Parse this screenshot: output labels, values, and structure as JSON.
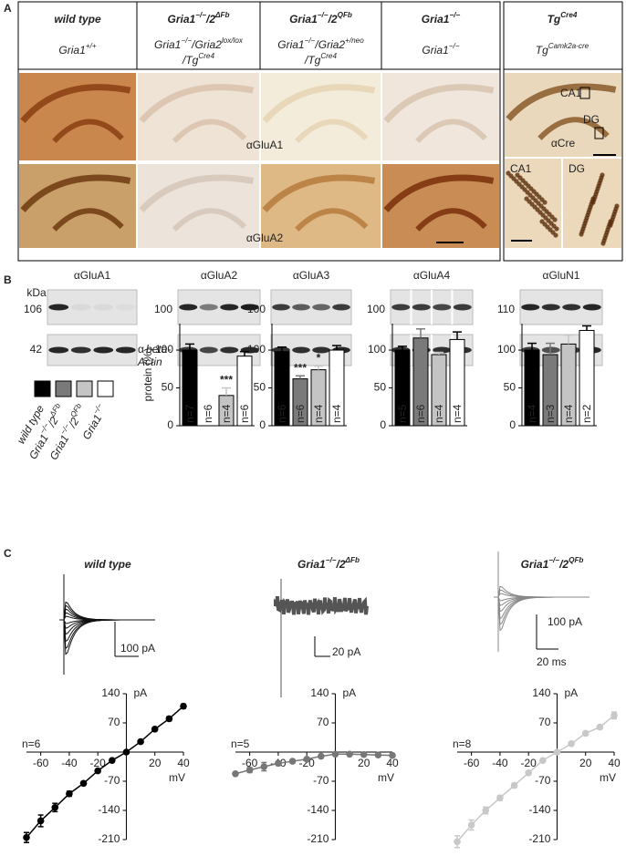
{
  "panels": {
    "A": {
      "label": "A",
      "genotypes": [
        {
          "title": [
            {
              "t": "wild type"
            }
          ],
          "subtitle": [
            [
              {
                "t": "Gria1"
              },
              {
                "t": "+/+",
                "sup": true
              }
            ]
          ]
        },
        {
          "title": [
            {
              "t": "Gria1"
            },
            {
              "t": "−/−",
              "sup": true
            },
            {
              "t": "/2"
            },
            {
              "t": "ΔFb",
              "sup": true
            }
          ],
          "subtitle": [
            [
              {
                "t": "Gria1"
              },
              {
                "t": "−/−",
                "sup": true
              },
              {
                "t": "/Gria2"
              },
              {
                "t": "lox/lox",
                "sup": true
              }
            ],
            [
              {
                "t": "/Tg"
              },
              {
                "t": "Cre4",
                "sup": true
              }
            ]
          ]
        },
        {
          "title": [
            {
              "t": "Gria1"
            },
            {
              "t": "−/−",
              "sup": true
            },
            {
              "t": "/2"
            },
            {
              "t": "QFb",
              "sup": true
            }
          ],
          "subtitle": [
            [
              {
                "t": "Gria1"
              },
              {
                "t": "−/−",
                "sup": true
              },
              {
                "t": "/Gria2"
              },
              {
                "t": "+/neo",
                "sup": true
              }
            ],
            [
              {
                "t": "/Tg"
              },
              {
                "t": "Cre4",
                "sup": true
              }
            ]
          ]
        },
        {
          "title": [
            {
              "t": "Gria1"
            },
            {
              "t": "−/−",
              "sup": true
            }
          ],
          "subtitle": [
            [
              {
                "t": "Gria1"
              },
              {
                "t": "−/−",
                "sup": true
              }
            ]
          ]
        }
      ],
      "cre": {
        "title": [
          {
            "t": "Tg"
          },
          {
            "t": "Cre4",
            "sup": true
          }
        ],
        "subtitle": [
          [
            {
              "t": "Tg"
            },
            {
              "t": "Camk2a-cre",
              "sup": true
            }
          ]
        ]
      },
      "stains": [
        "αGluA1",
        "αGluA2"
      ],
      "cre_stain": "αCre",
      "regions": [
        "CA1",
        "DG"
      ],
      "insets": [
        "CA1",
        "DG"
      ]
    },
    "B": {
      "label": "B",
      "kda": "kDa",
      "blots": [
        {
          "antibody": "αGluA1",
          "marker": "106"
        },
        {
          "antibody": "αGluA2",
          "marker": "100"
        },
        {
          "antibody": "αGluA3",
          "marker": "100"
        },
        {
          "antibody": "αGluA4",
          "marker": "100"
        },
        {
          "antibody": "αGluN1",
          "marker": "110"
        }
      ],
      "actin_marker": "42",
      "actin_label": [
        "α",
        "beta-",
        "Actin"
      ],
      "legend": [
        {
          "color": "#000000",
          "label": [
            {
              "t": "wild type"
            }
          ]
        },
        {
          "color": "#7a7a7a",
          "label": [
            {
              "t": "Gria1"
            },
            {
              "t": "−/−",
              "sup": true
            },
            {
              "t": "/2"
            },
            {
              "t": "ΔFb",
              "sup": true
            }
          ]
        },
        {
          "color": "#c4c4c4",
          "label": [
            {
              "t": "Gria1"
            },
            {
              "t": "−/−",
              "sup": true
            },
            {
              "t": "/2"
            },
            {
              "t": "QFb",
              "sup": true
            }
          ]
        },
        {
          "color": "#ffffff",
          "label": [
            {
              "t": "Gria1"
            },
            {
              "t": "−/−",
              "sup": true
            }
          ]
        }
      ]
    },
    "C": {
      "label": "C",
      "traces": [
        {
          "title": [
            {
              "t": "wild type"
            }
          ],
          "current_scale": "100 pA"
        },
        {
          "title": [
            {
              "t": "Gria1"
            },
            {
              "t": "−/−",
              "sup": true
            },
            {
              "t": "/2"
            },
            {
              "t": "ΔFb",
              "sup": true
            }
          ],
          "current_scale": "20 pA"
        },
        {
          "title": [
            {
              "t": "Gria1"
            },
            {
              "t": "−/−",
              "sup": true
            },
            {
              "t": "/2"
            },
            {
              "t": "QFb",
              "sup": true
            }
          ],
          "current_scale": "100 pA"
        }
      ],
      "time_scale": "20 ms"
    }
  },
  "chart_data": [
    {
      "type": "bar",
      "ylabel": "protein (%)",
      "values": [
        100,
        0,
        40,
        92
      ],
      "errors": [
        8,
        null,
        10,
        6
      ],
      "colors": [
        "#000000",
        "#7a7a7a",
        "#c4c4c4",
        "#ffffff"
      ],
      "n_labels": [
        "n=7",
        "n=6",
        "n=4",
        "n=6"
      ],
      "annotations": [
        {
          "bar": 2,
          "text": "***"
        }
      ],
      "ylim": [
        0,
        135
      ],
      "yticks": [
        0,
        50,
        100
      ]
    },
    {
      "type": "bar",
      "values": [
        98,
        62,
        74,
        100
      ],
      "errors": [
        6,
        4,
        5,
        6
      ],
      "colors": [
        "#000000",
        "#7a7a7a",
        "#c4c4c4",
        "#ffffff"
      ],
      "n_labels": [
        "n=6",
        "n=6",
        "n=4",
        "n=4"
      ],
      "annotations": [
        {
          "bar": 1,
          "text": "***"
        },
        {
          "bar": 2,
          "text": "*"
        }
      ],
      "ylim": [
        0,
        135
      ],
      "yticks": [
        0,
        50,
        100
      ]
    },
    {
      "type": "bar",
      "values": [
        100,
        116,
        94,
        114
      ],
      "errors": [
        5,
        12,
        3,
        10
      ],
      "colors": [
        "#000000",
        "#7a7a7a",
        "#c4c4c4",
        "#ffffff"
      ],
      "n_labels": [
        "n=5",
        "n=6",
        "n=4",
        "n=4"
      ],
      "ylim": [
        0,
        135
      ],
      "yticks": [
        0,
        50,
        100
      ]
    },
    {
      "type": "bar",
      "values": [
        100,
        94,
        108,
        126
      ],
      "errors": [
        9,
        15,
        12,
        6
      ],
      "colors": [
        "#000000",
        "#7a7a7a",
        "#c4c4c4",
        "#ffffff"
      ],
      "n_labels": [
        "n=4",
        "n=3",
        "n=4",
        "n=2"
      ],
      "ylim": [
        0,
        135
      ],
      "yticks": [
        0,
        50,
        100
      ]
    },
    {
      "type": "line",
      "xlabel": "mV",
      "ylabel": "pA",
      "n_label": "n=6",
      "xlim": [
        -70,
        40
      ],
      "ylim": [
        -210,
        140
      ],
      "xticks": [
        -60,
        -40,
        -20,
        20,
        40
      ],
      "yticks": [
        140,
        70,
        -70,
        -140,
        -210
      ],
      "x": [
        -70,
        -60,
        -50,
        -40,
        -30,
        -20,
        -10,
        0,
        10,
        20,
        30,
        40
      ],
      "series": [
        {
          "color": "#000000",
          "values": [
            -205,
            -165,
            -133,
            -100,
            -75,
            -45,
            -20,
            0,
            25,
            55,
            80,
            110
          ],
          "errors": [
            12,
            14,
            10,
            6,
            4,
            3,
            2,
            1,
            2,
            4,
            5,
            5
          ]
        }
      ]
    },
    {
      "type": "line",
      "xlabel": "mV",
      "ylabel": "pA",
      "n_label": "n=5",
      "xlim": [
        -70,
        40
      ],
      "ylim": [
        -210,
        140
      ],
      "xticks": [
        -60,
        -40,
        -20,
        20,
        40
      ],
      "yticks": [
        140,
        70,
        -70,
        -140,
        -210
      ],
      "x": [
        -70,
        -60,
        -50,
        -40,
        -30,
        -20,
        -10,
        0,
        10,
        20,
        30,
        40
      ],
      "series": [
        {
          "color": "#777777",
          "values": [
            -52,
            -43,
            -35,
            -27,
            -22,
            -17,
            -10,
            -5,
            -5,
            -6,
            -7,
            -8
          ],
          "errors": [
            4,
            6,
            10,
            5,
            4,
            3,
            2,
            1,
            2,
            2,
            3,
            3
          ]
        }
      ]
    },
    {
      "type": "line",
      "xlabel": "mV",
      "ylabel": "pA",
      "n_label": "n=8",
      "xlim": [
        -70,
        40
      ],
      "ylim": [
        -210,
        140
      ],
      "xticks": [
        -60,
        -40,
        -20,
        20,
        40
      ],
      "yticks": [
        140,
        70,
        -70,
        -140,
        -210
      ],
      "x": [
        -70,
        -60,
        -50,
        -40,
        -30,
        -20,
        -10,
        0,
        10,
        20,
        30,
        40
      ],
      "series": [
        {
          "color": "#c8c8c8",
          "values": [
            -215,
            -175,
            -140,
            -110,
            -80,
            -50,
            -20,
            0,
            20,
            45,
            60,
            88
          ],
          "errors": [
            14,
            12,
            8,
            6,
            5,
            4,
            2,
            1,
            3,
            4,
            4,
            8
          ]
        }
      ]
    }
  ]
}
